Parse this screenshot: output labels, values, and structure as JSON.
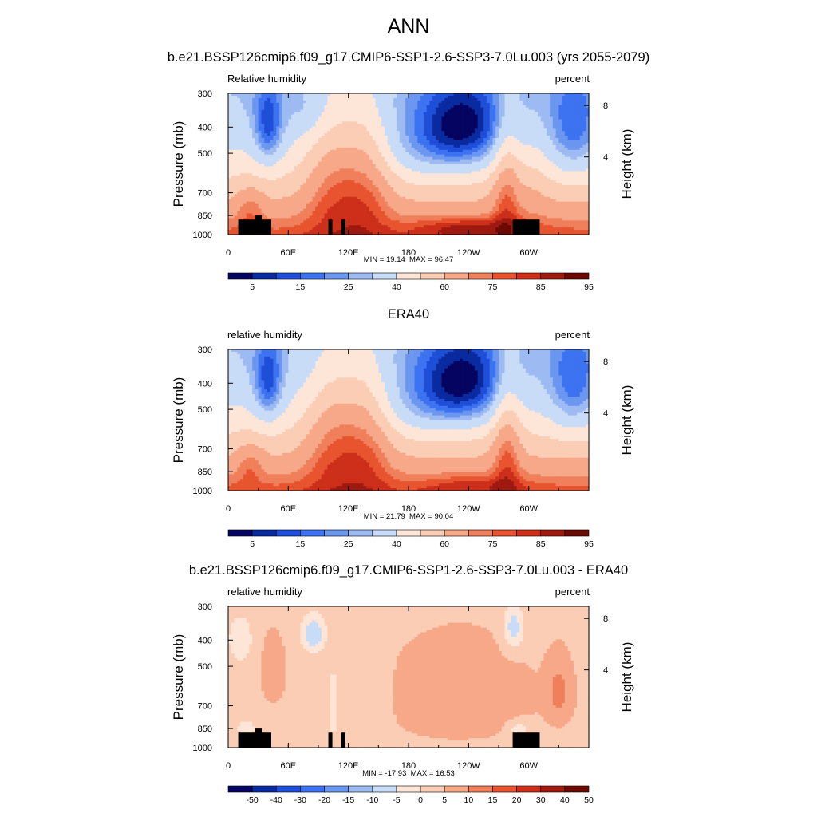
{
  "figure": {
    "main_title": "ANN",
    "panel1_title": "b.e21.BSSP126cmip6.f09_g17.CMIP6-SSP1-2.6-SSP3-7.0Lu.003 (yrs 2055-2079)",
    "panel2_title": "ERA40",
    "panel3_title": "b.e21.BSSP126cmip6.f09_g17.CMIP6-SSP1-2.6-SSP3-7.0Lu.003 - ERA40"
  },
  "chart_data": [
    {
      "type": "heatmap",
      "title": "b.e21.BSSP126cmip6.f09_g17.CMIP6-SSP1-2.6-SSP3-7.0Lu.003 (yrs 2055-2079)",
      "variable": "Relative humidity",
      "units": "percent",
      "xlabel": "",
      "ylabel": "Pressure (mb)",
      "ylabel_right": "Height (km)",
      "x_ticks": [
        "0",
        "60E",
        "120E",
        "180",
        "120W",
        "60W"
      ],
      "y_ticks": [
        "300",
        "400",
        "500",
        "700",
        "850",
        "1000"
      ],
      "y_ticks_right": [
        "8",
        "4"
      ],
      "min_text": "MIN = 19.14",
      "max_text": "MAX = 96.47",
      "min": 19.14,
      "max": 96.47,
      "colorbar_labels": [
        "5",
        "15",
        "25",
        "40",
        "60",
        "75",
        "85",
        "95"
      ],
      "colorbar_levels": [
        5,
        10,
        15,
        20,
        25,
        30,
        40,
        50,
        60,
        70,
        75,
        80,
        85,
        90,
        95
      ]
    },
    {
      "type": "heatmap",
      "title": "ERA40",
      "variable": "relative humidity",
      "units": "percent",
      "xlabel": "",
      "ylabel": "Pressure (mb)",
      "ylabel_right": "Height (km)",
      "x_ticks": [
        "0",
        "60E",
        "120E",
        "180",
        "120W",
        "60W"
      ],
      "y_ticks": [
        "300",
        "400",
        "500",
        "700",
        "850",
        "1000"
      ],
      "y_ticks_right": [
        "8",
        "4"
      ],
      "min_text": "MIN = 21.79",
      "max_text": "MAX = 90.04",
      "min": 21.79,
      "max": 90.04,
      "colorbar_labels": [
        "5",
        "15",
        "25",
        "40",
        "60",
        "75",
        "85",
        "95"
      ],
      "colorbar_levels": [
        5,
        10,
        15,
        20,
        25,
        30,
        40,
        50,
        60,
        70,
        75,
        80,
        85,
        90,
        95
      ]
    },
    {
      "type": "heatmap",
      "title": "b.e21.BSSP126cmip6.f09_g17.CMIP6-SSP1-2.6-SSP3-7.0Lu.003 - ERA40",
      "variable": "relative humidity",
      "units": "percent",
      "xlabel": "",
      "ylabel": "Pressure (mb)",
      "ylabel_right": "Height (km)",
      "x_ticks": [
        "0",
        "60E",
        "120E",
        "180",
        "120W",
        "60W"
      ],
      "y_ticks": [
        "300",
        "400",
        "500",
        "700",
        "850",
        "1000"
      ],
      "y_ticks_right": [
        "8",
        "4"
      ],
      "min_text": "MIN = -17.93",
      "max_text": "MAX = 16.53",
      "min": -17.93,
      "max": 16.53,
      "colorbar_labels": [
        "-50",
        "-40",
        "-30",
        "-20",
        "-15",
        "-10",
        "-5",
        "0",
        "5",
        "10",
        "15",
        "20",
        "30",
        "40",
        "50"
      ],
      "colorbar_levels": [
        -50,
        -40,
        -30,
        -20,
        -15,
        -10,
        -5,
        0,
        5,
        10,
        15,
        20,
        30,
        40,
        50
      ]
    }
  ],
  "colors": {
    "palette": [
      "#050561",
      "#0a2aa0",
      "#1f4fd8",
      "#3d73f0",
      "#6b97f0",
      "#9dbaf2",
      "#c8dcf8",
      "#fde6d8",
      "#fbcdb4",
      "#f6a889",
      "#f07f5b",
      "#e8542f",
      "#cc2f1a",
      "#9e1a10",
      "#6b0a04"
    ],
    "topography": "#000000"
  }
}
